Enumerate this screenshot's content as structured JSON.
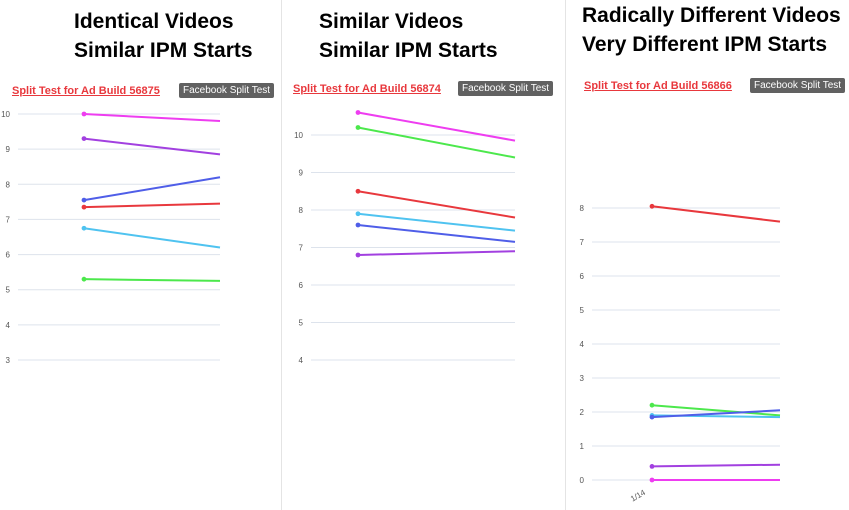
{
  "panels": [
    {
      "title_line1": "Identical Videos",
      "title_line2": "Similar IPM Starts",
      "link_text": "Split Test for Ad Build 56875",
      "badge_text": "Facebook Split Test"
    },
    {
      "title_line1": "Similar Videos",
      "title_line2": "Similar IPM Starts",
      "link_text": "Split Test for Ad Build 56874",
      "badge_text": "Facebook Split Test"
    },
    {
      "title_line1": "Radically Different Videos",
      "title_line2": "Very Different IPM Starts",
      "link_text": "Split Test for Ad Build 56866",
      "badge_text": "Facebook Split Test"
    }
  ],
  "chart_data": [
    {
      "type": "line",
      "title": "",
      "xlabel": "",
      "ylabel": "",
      "x_ticks": [],
      "y_ticks": [
        3,
        4,
        5,
        6,
        7,
        8,
        9,
        10
      ],
      "ylim": [
        3,
        10
      ],
      "grid": true,
      "series": [
        {
          "color": "#ee3df0",
          "values": [
            10.0,
            9.8
          ]
        },
        {
          "color": "#a240e0",
          "values": [
            9.3,
            8.85
          ]
        },
        {
          "color": "#4f5ee8",
          "values": [
            7.55,
            8.2
          ]
        },
        {
          "color": "#e8383d",
          "values": [
            7.35,
            7.45
          ]
        },
        {
          "color": "#4fc3f0",
          "values": [
            6.75,
            6.2
          ]
        },
        {
          "color": "#4ce84c",
          "values": [
            5.3,
            5.25
          ]
        }
      ]
    },
    {
      "type": "line",
      "title": "",
      "xlabel": "",
      "ylabel": "",
      "x_ticks": [],
      "y_ticks": [
        4,
        5,
        6,
        7,
        8,
        9,
        10
      ],
      "ylim": [
        4,
        10
      ],
      "grid": true,
      "series": [
        {
          "color": "#ee3df0",
          "values": [
            10.6,
            9.85
          ]
        },
        {
          "color": "#4ce84c",
          "values": [
            10.2,
            9.4
          ]
        },
        {
          "color": "#e8383d",
          "values": [
            8.5,
            7.8
          ]
        },
        {
          "color": "#4fc3f0",
          "values": [
            7.9,
            7.45
          ]
        },
        {
          "color": "#4f5ee8",
          "values": [
            7.6,
            7.15
          ]
        },
        {
          "color": "#a240e0",
          "values": [
            6.8,
            6.9
          ]
        }
      ]
    },
    {
      "type": "line",
      "title": "",
      "xlabel": "",
      "ylabel": "",
      "x_ticks": [
        "1/14"
      ],
      "y_ticks": [
        0,
        1,
        2,
        3,
        4,
        5,
        6,
        7,
        8
      ],
      "ylim": [
        0,
        8
      ],
      "grid": true,
      "series": [
        {
          "color": "#e8383d",
          "values": [
            8.05,
            7.6
          ]
        },
        {
          "color": "#4ce84c",
          "values": [
            2.2,
            1.9
          ]
        },
        {
          "color": "#4fc3f0",
          "values": [
            1.9,
            1.85
          ]
        },
        {
          "color": "#4f5ee8",
          "values": [
            1.85,
            2.05
          ]
        },
        {
          "color": "#a240e0",
          "values": [
            0.4,
            0.45
          ]
        },
        {
          "color": "#ee3df0",
          "values": [
            0.0,
            0.0
          ]
        }
      ]
    }
  ]
}
